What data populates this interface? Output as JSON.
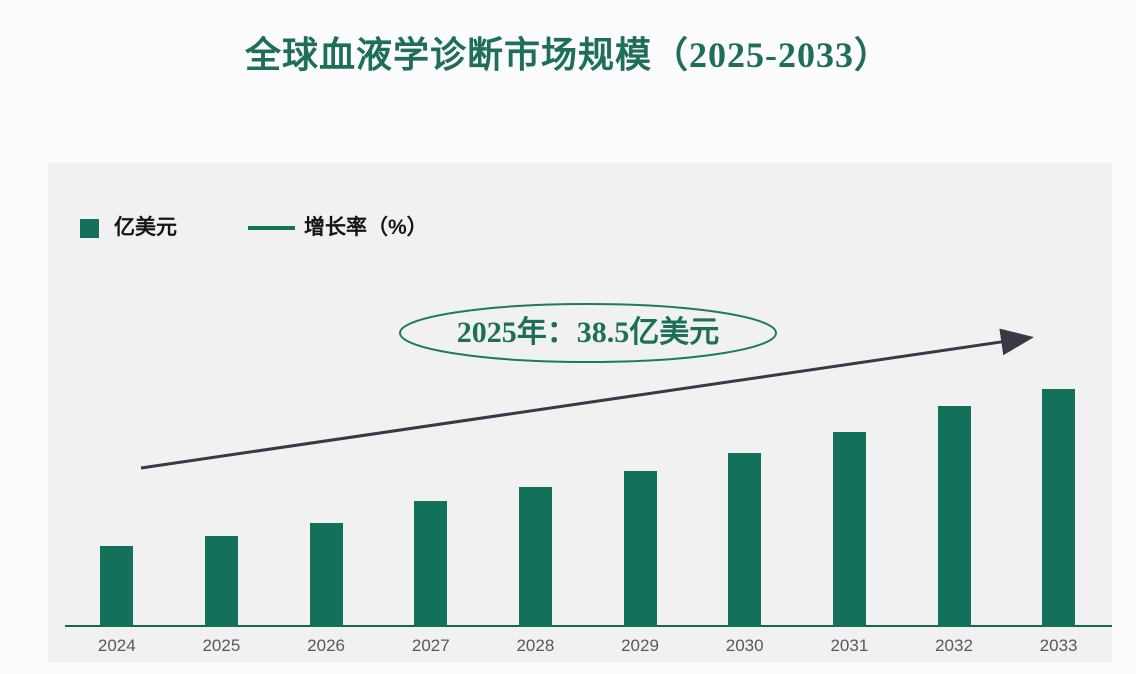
{
  "page": {
    "title": "全球血液学诊断市场规模（2025-2033）"
  },
  "legend": {
    "bar_label": "亿美元",
    "line_label": "增长率（%）"
  },
  "annotation": {
    "text": "2025年：38.5亿美元"
  },
  "chart_data": {
    "type": "bar",
    "title": "全球血液学诊断市场规模（2025-2033）",
    "categories": [
      "2024",
      "2025",
      "2026",
      "2027",
      "2028",
      "2029",
      "2030",
      "2031",
      "2032",
      "2033"
    ],
    "series": [
      {
        "name": "亿美元",
        "type": "bar",
        "values": [
          34.3,
          38.5,
          44.0,
          53.3,
          59.2,
          66.0,
          73.6,
          82.5,
          93.5,
          100.7
        ],
        "labeled_point": {
          "category": "2025",
          "value": 38.5,
          "label": "2025年：38.5亿美元"
        }
      },
      {
        "name": "增长率（%）",
        "type": "line",
        "values": [],
        "rendered_as": "straight upward trend arrow, no data labels"
      }
    ],
    "xlabel": "",
    "ylabel": "亿美元",
    "y_axis_shown": false,
    "grid": false,
    "legend_position": "top-left",
    "annotations": [
      "2025年：38.5亿美元 inside green ellipse",
      "dark upward arrow from 2024 to 2033"
    ],
    "colors": {
      "bar": "#12705b",
      "legend_line": "#12705b",
      "trend_arrow": "#3a3847",
      "title_text": "#1e6e59",
      "annotation_text": "#1d6f5a",
      "ellipse_stroke": "#1e7a60",
      "axis_line": "#166653",
      "tick_label": "#595959",
      "panel_background": "#f1f1f2",
      "page_background": "#fcfcfc"
    }
  }
}
